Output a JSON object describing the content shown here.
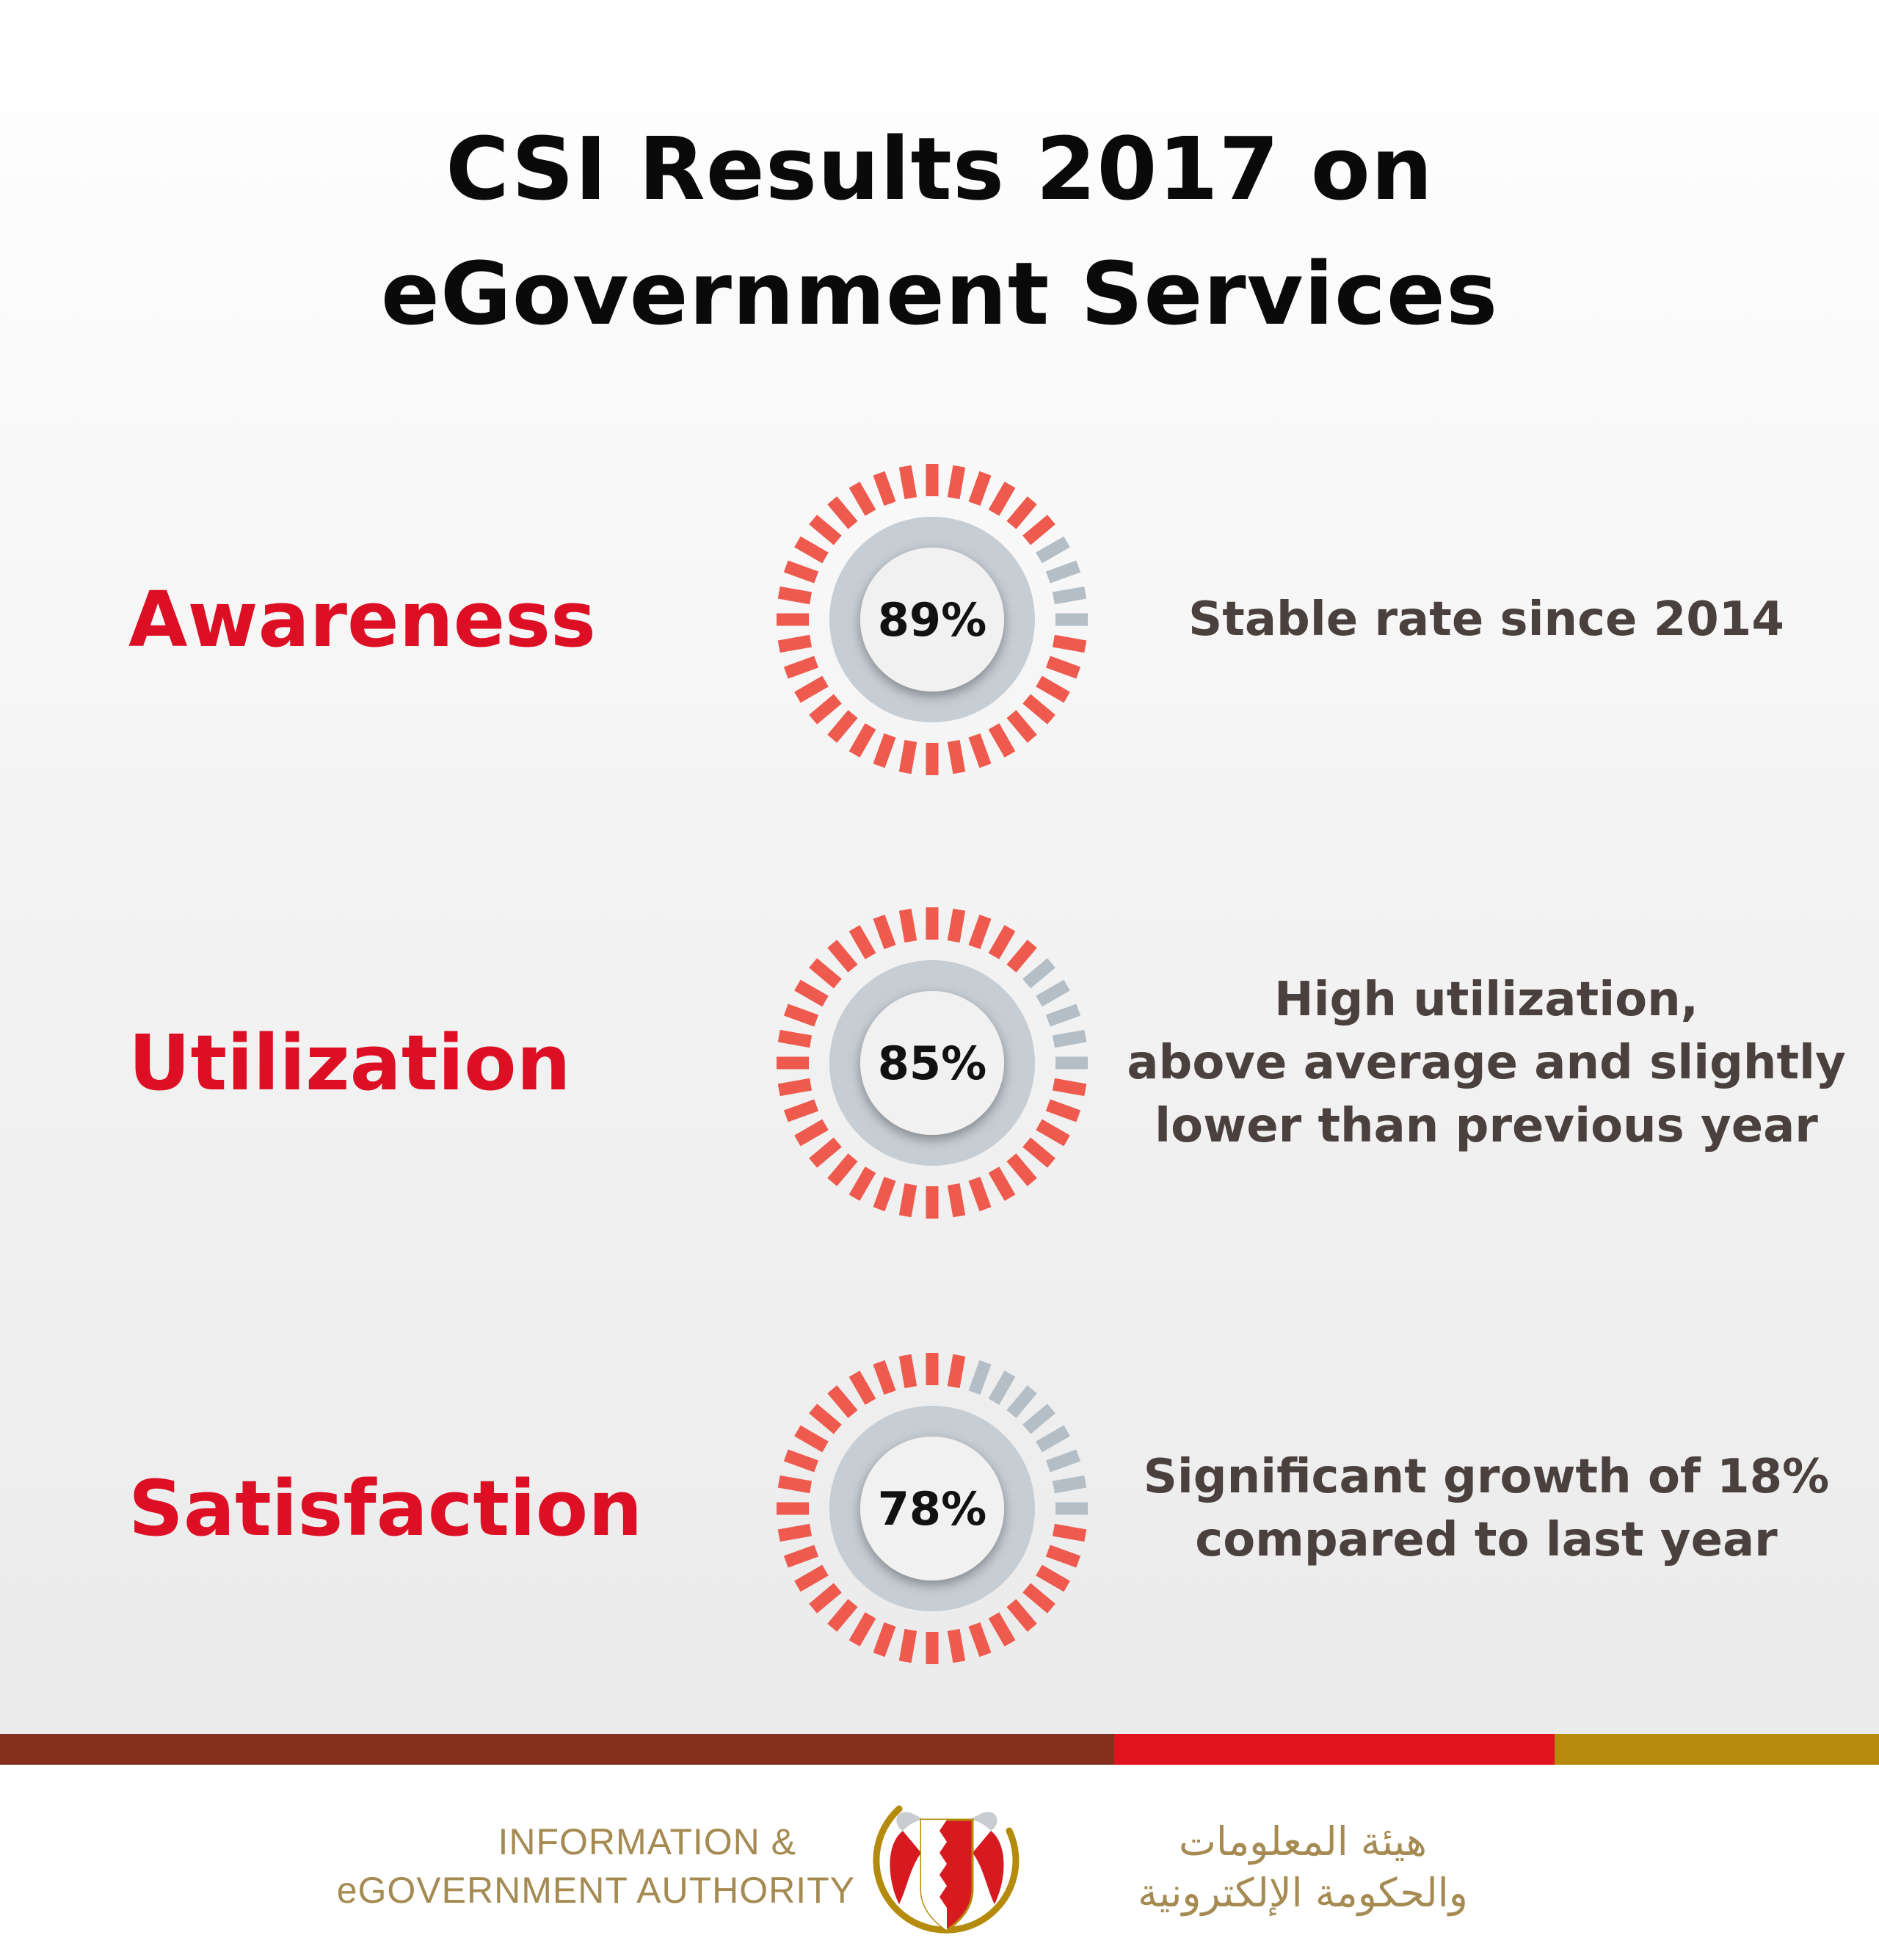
{
  "title": {
    "line1": "CSI Results 2017 on",
    "line2": "eGovernment Services"
  },
  "colors": {
    "label": "#dc0f24",
    "dash_filled": "#ee5a4d",
    "dash_empty": "#b3bec6",
    "ring": "#c6cdd3",
    "center": "#f1f1f1",
    "description": "#4a403e",
    "band": [
      "#84301c",
      "#e0131f",
      "#b48b0c"
    ],
    "footer_text": "#a58a52"
  },
  "metrics": [
    {
      "label": "Awareness",
      "percent": 89,
      "value_text": "89%",
      "description": [
        "Stable rate since 2014"
      ]
    },
    {
      "label": "Utilization",
      "percent": 85,
      "value_text": "85%",
      "description": [
        "High utilization,",
        "above average and slightly",
        "lower than previous year"
      ]
    },
    {
      "label": "Satisfaction",
      "percent": 78,
      "value_text": "78%",
      "description": [
        "Significant growth of 18%",
        "compared to last year"
      ]
    }
  ],
  "footer": {
    "org_en_line1": "INFORMATION &",
    "org_en_line2": "eGOVERNMENT AUTHORITY",
    "org_ar_line1": "هيئة المعلومات",
    "org_ar_line2": "والحكومة الإلكترونية",
    "emblem_icon": "bahrain-emblem-icon"
  }
}
